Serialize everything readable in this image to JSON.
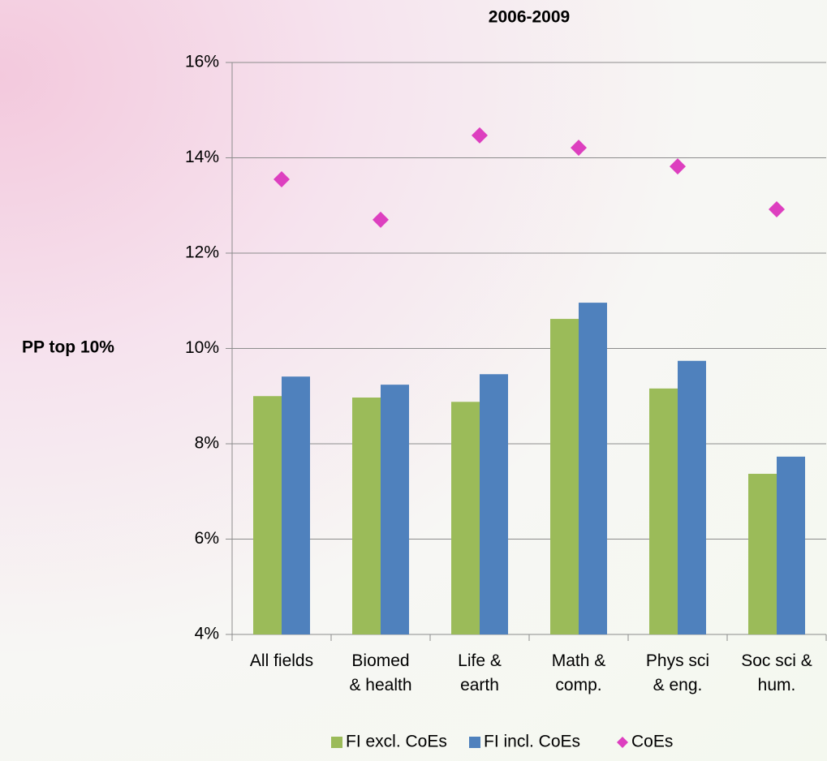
{
  "chart_data": {
    "type": "bar",
    "title": "2006-2009",
    "ylabel": "PP top 10%",
    "categories": [
      "All fields",
      "Biomed\n& health",
      "Life &\nearth",
      "Math &\ncomp.",
      "Phys sci\n& eng.",
      "Soc sci &\nhum."
    ],
    "series": [
      {
        "name": "FI excl. CoEs",
        "color": "#9bbb59",
        "kind": "bar",
        "values": [
          9.0,
          8.97,
          8.88,
          10.62,
          9.16,
          7.37
        ]
      },
      {
        "name": "FI incl. CoEs",
        "color": "#4f81bd",
        "kind": "bar",
        "values": [
          9.41,
          9.24,
          9.46,
          10.96,
          9.74,
          7.73
        ]
      },
      {
        "name": "CoEs",
        "color": "#dd3fbf",
        "kind": "diamond",
        "values": [
          13.55,
          12.7,
          14.47,
          14.21,
          13.82,
          12.92
        ]
      }
    ],
    "ylim": [
      4,
      16
    ],
    "yticks": [
      {
        "value": 4,
        "label": "4%"
      },
      {
        "value": 6,
        "label": "6%"
      },
      {
        "value": 8,
        "label": "8%"
      },
      {
        "value": 10,
        "label": "10%"
      },
      {
        "value": 12,
        "label": "12%"
      },
      {
        "value": 14,
        "label": "14%"
      },
      {
        "value": 16,
        "label": "16%"
      }
    ],
    "grid": true,
    "legend": "bottom"
  }
}
